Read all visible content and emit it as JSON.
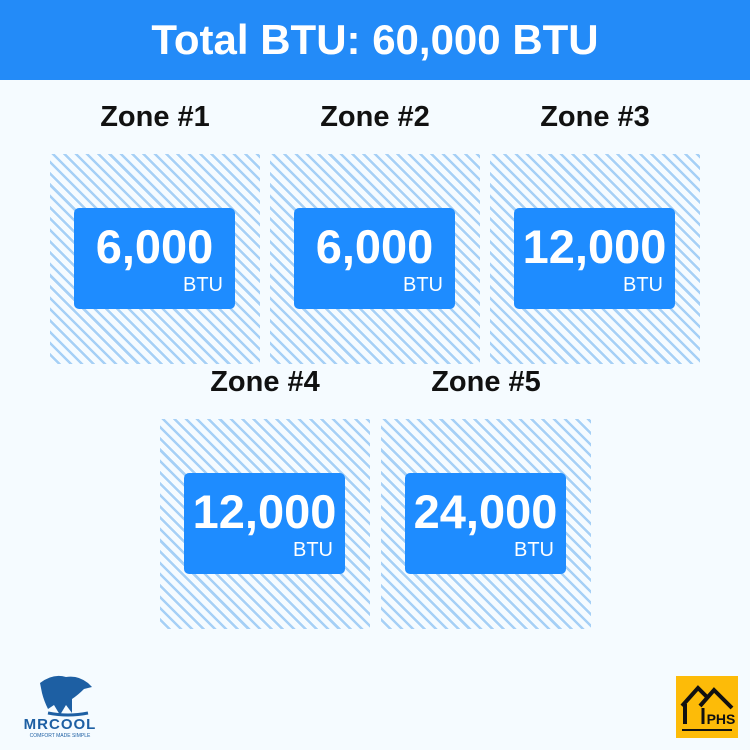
{
  "header": {
    "title": "Total BTU: 60,000 BTU"
  },
  "zones": [
    {
      "title": "Zone #1",
      "value": "6,000",
      "unit": "BTU"
    },
    {
      "title": "Zone #2",
      "value": "6,000",
      "unit": "BTU"
    },
    {
      "title": "Zone #3",
      "value": "12,000",
      "unit": "BTU"
    },
    {
      "title": "Zone #4",
      "value": "12,000",
      "unit": "BTU"
    },
    {
      "title": "Zone #5",
      "value": "24,000",
      "unit": "BTU"
    }
  ],
  "logos": {
    "mrcool": "MRCOOL",
    "mrcool_tagline": "COMFORT MADE SIMPLE",
    "phs": "PHS"
  },
  "colors": {
    "accent": "#238bf8",
    "box": "#1e8cff",
    "hatch": "#a6d0f6",
    "phs": "#fdbb08"
  }
}
